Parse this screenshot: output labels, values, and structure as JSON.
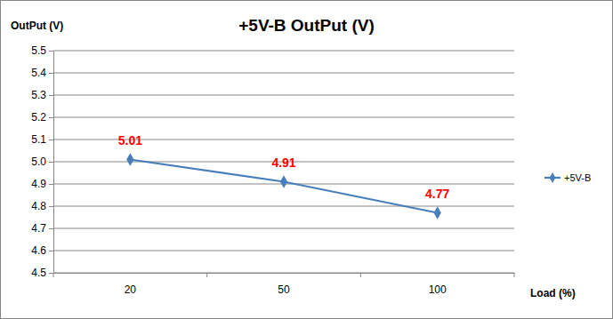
{
  "chart_data": {
    "type": "line",
    "title": "+5V-B OutPut (V)",
    "ylabel": "OutPut (V)",
    "xlabel": "Load (%)",
    "categories": [
      "20",
      "50",
      "100"
    ],
    "series": [
      {
        "name": "+5V-B",
        "color": "#4a7ebb",
        "marker": "diamond",
        "values": [
          5.01,
          4.91,
          4.77
        ]
      }
    ],
    "ylim": [
      4.5,
      5.5
    ],
    "yticks": [
      4.5,
      4.6,
      4.7,
      4.8,
      4.9,
      {
        "value": 5,
        "label": "5.0"
      },
      5.1,
      5.2,
      5.3,
      5.4,
      5.5
    ],
    "grid": true,
    "legend": "right",
    "data_labels": true
  }
}
